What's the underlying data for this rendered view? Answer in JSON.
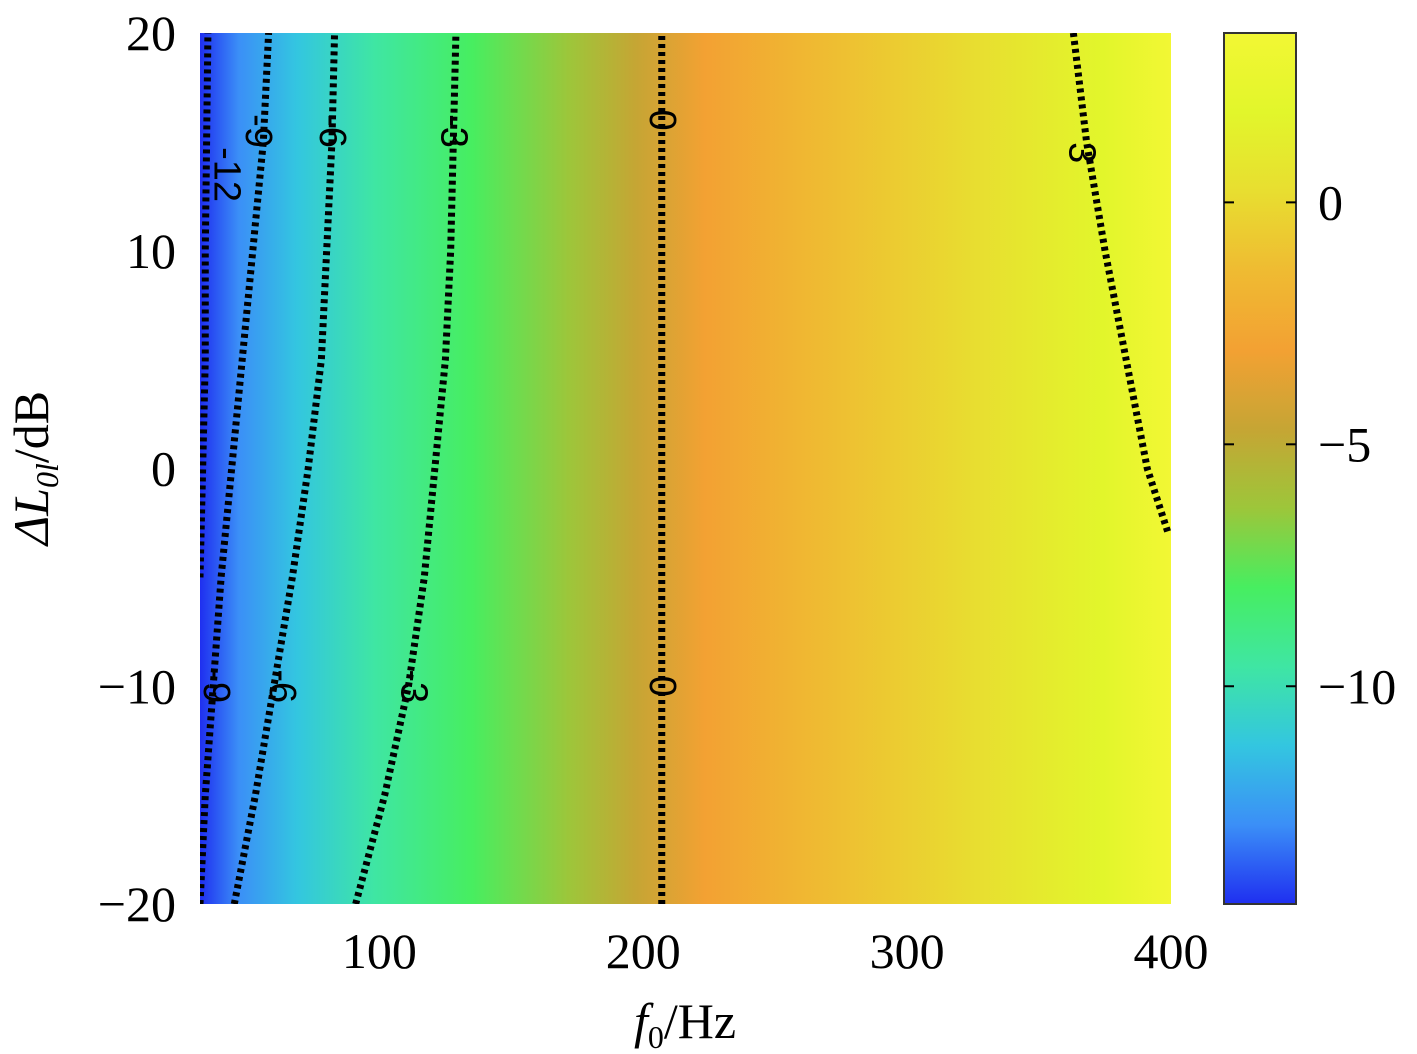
{
  "chart_data": {
    "type": "heatmap",
    "subtype": "filled-contour",
    "xlabel": {
      "main": "f",
      "sub": "0",
      "rest": "/Hz"
    },
    "ylabel": {
      "prefix": "ΔL",
      "sub": "0l",
      "rest": "/dB"
    },
    "xlim": [
      32,
      400
    ],
    "ylim": [
      -20,
      20
    ],
    "x_ticks": [
      100,
      200,
      300,
      400
    ],
    "x_tick_labels": [
      "100",
      "200",
      "300",
      "400"
    ],
    "y_ticks": [
      20,
      10,
      0,
      -10,
      -20
    ],
    "y_tick_labels": [
      "20",
      "10",
      "0",
      "−10",
      "−20"
    ],
    "colorbar": {
      "range": [
        -14.5,
        3.5
      ],
      "ticks": [
        0,
        -5,
        -10
      ],
      "tick_labels": [
        "0",
        "−5",
        "−10"
      ],
      "colormap": "parula",
      "colors": [
        "#1f2ff0",
        "#3b8ff7",
        "#33c6e0",
        "#3fe6a3",
        "#47ee60",
        "#9dc63a",
        "#c6a534",
        "#f3a133",
        "#efbb32",
        "#e8de30",
        "#e2f62b",
        "#f2f734"
      ]
    },
    "contours": [
      {
        "level": -12,
        "label": "-12",
        "points": [
          [
            32,
            -5
          ],
          [
            33,
            0
          ],
          [
            34,
            5
          ],
          [
            34,
            10
          ],
          [
            34.5,
            15
          ],
          [
            35,
            20
          ]
        ],
        "labels": [
          {
            "x": 42,
            "y": 13.5
          }
        ]
      },
      {
        "level": -9,
        "label": "-9",
        "points": [
          [
            32,
            -20
          ],
          [
            34,
            -15
          ],
          [
            37,
            -10
          ],
          [
            40,
            -5
          ],
          [
            44,
            0
          ],
          [
            48,
            5
          ],
          [
            52,
            10
          ],
          [
            56,
            15
          ],
          [
            58,
            20
          ]
        ],
        "labels": [
          {
            "x": 54,
            "y": 15.5
          },
          {
            "x": 38,
            "y": -10
          }
        ]
      },
      {
        "level": -6,
        "label": "-6",
        "points": [
          [
            45,
            -20
          ],
          [
            53,
            -15
          ],
          [
            60,
            -10
          ],
          [
            67,
            -5
          ],
          [
            73,
            0
          ],
          [
            78,
            5
          ],
          [
            80,
            10
          ],
          [
            82,
            15
          ],
          [
            83,
            20
          ]
        ],
        "labels": [
          {
            "x": 82,
            "y": 15.5
          },
          {
            "x": 63,
            "y": -10
          }
        ]
      },
      {
        "level": -3,
        "label": "-3",
        "points": [
          [
            91,
            -20
          ],
          [
            102,
            -15
          ],
          [
            111,
            -10
          ],
          [
            117,
            -5
          ],
          [
            121,
            0
          ],
          [
            125,
            5
          ],
          [
            127,
            10
          ],
          [
            128,
            15
          ],
          [
            129,
            20
          ]
        ],
        "labels": [
          {
            "x": 128,
            "y": 15.5
          },
          {
            "x": 113,
            "y": -10
          }
        ]
      },
      {
        "level": 0,
        "label": "0",
        "points": [
          [
            207,
            -20
          ],
          [
            207,
            -10
          ],
          [
            207,
            0
          ],
          [
            207,
            10
          ],
          [
            207,
            20
          ]
        ],
        "labels": [
          {
            "x": 207,
            "y": 16
          },
          {
            "x": 207,
            "y": -10
          }
        ]
      },
      {
        "level": 3,
        "label": "3",
        "points": [
          [
            363,
            20
          ],
          [
            368,
            15
          ],
          [
            375,
            10
          ],
          [
            383,
            5
          ],
          [
            391,
            0
          ],
          [
            399,
            -3
          ]
        ],
        "labels": [
          {
            "x": 366,
            "y": 14.5
          }
        ]
      }
    ]
  }
}
